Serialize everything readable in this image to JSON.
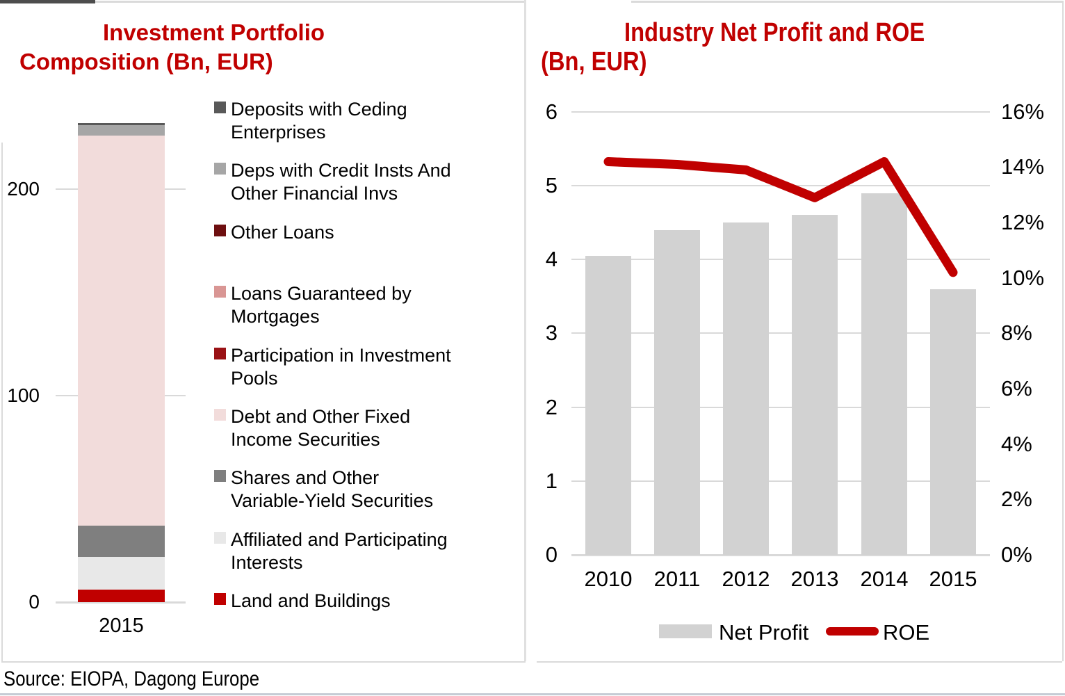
{
  "source_note": "Source: EIOPA, Dagong Europe",
  "title_color": "#C00000",
  "chart_data": [
    {
      "type": "bar",
      "stacked": true,
      "title": "Investment Portfolio Composition (Bn, EUR)",
      "title_lines": [
        "Investment Portfolio",
        "Composition (Bn, EUR)"
      ],
      "categories": [
        "2015"
      ],
      "unit": "Bn EUR",
      "ylim": [
        0,
        240
      ],
      "yticks": [
        0,
        100,
        200
      ],
      "grid": true,
      "legend_position": "right",
      "series_note": "listed in legend order top-to-bottom; bar stacks bottom-to-top in reverse order",
      "series": [
        {
          "name": "Deposits with Ceding Enterprises",
          "label_wrap": "Deposits with Ceding\nEnterprises",
          "color": "#595959",
          "values": [
            1
          ]
        },
        {
          "name": "Deps with Credit Insts And Other Financial Invs",
          "label_wrap": "Deps with Credit Insts And\nOther Financial Invs",
          "color": "#A6A6A6",
          "values": [
            5
          ]
        },
        {
          "name": "Other Loans",
          "label_wrap": "Other Loans",
          "color": "#6E0F10",
          "values": [
            0
          ]
        },
        {
          "name": "Loans Guaranteed by Mortgages",
          "label_wrap": "Loans Guaranteed by\nMortgages",
          "color": "#D99694",
          "values": [
            0
          ]
        },
        {
          "name": "Participation in Investment Pools",
          "label_wrap": "Participation in Investment\nPools",
          "color": "#9A1215",
          "values": [
            0
          ]
        },
        {
          "name": "Debt and Other Fixed Income Securities",
          "label_wrap": "Debt and Other Fixed\nIncome Securities",
          "color": "#F2DCDB",
          "values": [
            189
          ]
        },
        {
          "name": "Shares and Other Variable-Yield Securities",
          "label_wrap": "Shares and Other\nVariable-Yield Securities",
          "color": "#7F7F7F",
          "values": [
            15
          ]
        },
        {
          "name": "Affiliated and Participating Interests",
          "label_wrap": "Affiliated and Participating\nInterests",
          "color": "#E8E8E8",
          "values": [
            16
          ]
        },
        {
          "name": "Land and Buildings",
          "label_wrap": "Land and Buildings",
          "color": "#C00000",
          "values": [
            6
          ]
        }
      ]
    },
    {
      "type": "combo",
      "title": "Industry Net Profit and ROE (Bn, EUR)",
      "title_lines": [
        "Industry Net Profit and ROE",
        "(Bn, EUR)"
      ],
      "categories": [
        "2010",
        "2011",
        "2012",
        "2013",
        "2014",
        "2015"
      ],
      "grid": true,
      "legend_position": "bottom",
      "left_axis": {
        "range": [
          0,
          6
        ],
        "ticks": [
          0,
          1,
          2,
          3,
          4,
          5,
          6
        ],
        "unit": "Bn EUR"
      },
      "right_axis": {
        "range": [
          0,
          16
        ],
        "ticks": [
          "0%",
          "2%",
          "4%",
          "6%",
          "8%",
          "10%",
          "12%",
          "14%",
          "16%"
        ],
        "unit": "%"
      },
      "series": [
        {
          "name": "Net Profit",
          "chart": "bar",
          "axis": "left",
          "color": "#D2D2D2",
          "values": [
            4.05,
            4.4,
            4.5,
            4.6,
            4.9,
            3.6
          ]
        },
        {
          "name": "ROE",
          "chart": "line",
          "axis": "right",
          "color": "#C00000",
          "unit": "%",
          "values": [
            14.2,
            14.1,
            13.9,
            12.9,
            14.2,
            10.2
          ]
        }
      ]
    }
  ]
}
